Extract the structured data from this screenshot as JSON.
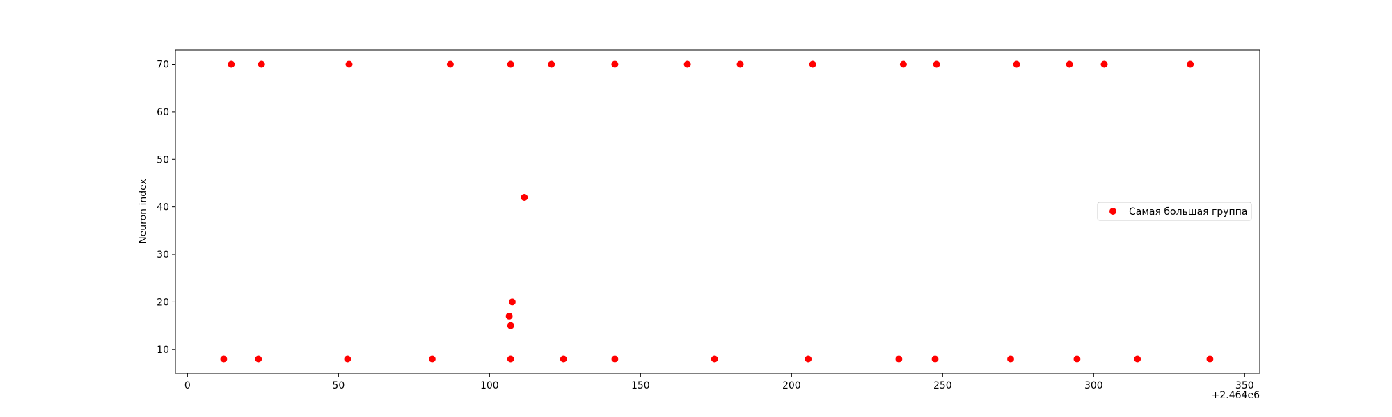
{
  "chart_data": {
    "type": "scatter",
    "title": "",
    "xlabel": "",
    "ylabel": "Neuron index",
    "x_offset_label": "+2.464e6",
    "xlim": [
      -4,
      355
    ],
    "ylim": [
      5,
      73
    ],
    "xticks": [
      0,
      50,
      100,
      150,
      200,
      250,
      300,
      350
    ],
    "yticks": [
      10,
      20,
      30,
      40,
      50,
      60,
      70
    ],
    "grid": false,
    "legend_position": "center-right",
    "series": [
      {
        "name": "Самая большая группа",
        "color": "#ff0000",
        "points": [
          [
            14.5,
            70
          ],
          [
            24.5,
            70
          ],
          [
            53.5,
            70
          ],
          [
            87,
            70
          ],
          [
            107,
            70
          ],
          [
            120.5,
            70
          ],
          [
            141.5,
            70
          ],
          [
            165.5,
            70
          ],
          [
            183,
            70
          ],
          [
            207,
            70
          ],
          [
            237,
            70
          ],
          [
            248,
            70
          ],
          [
            274.5,
            70
          ],
          [
            292,
            70
          ],
          [
            303.5,
            70
          ],
          [
            332,
            70
          ],
          [
            111.5,
            42
          ],
          [
            107.5,
            20
          ],
          [
            106.5,
            17
          ],
          [
            107,
            15
          ],
          [
            12,
            8
          ],
          [
            23.5,
            8
          ],
          [
            53,
            8
          ],
          [
            81,
            8
          ],
          [
            107,
            8
          ],
          [
            124.5,
            8
          ],
          [
            141.5,
            8
          ],
          [
            174.5,
            8
          ],
          [
            205.5,
            8
          ],
          [
            235.5,
            8
          ],
          [
            247.5,
            8
          ],
          [
            272.5,
            8
          ],
          [
            294.5,
            8
          ],
          [
            314.5,
            8
          ],
          [
            338.5,
            8
          ]
        ]
      }
    ]
  }
}
